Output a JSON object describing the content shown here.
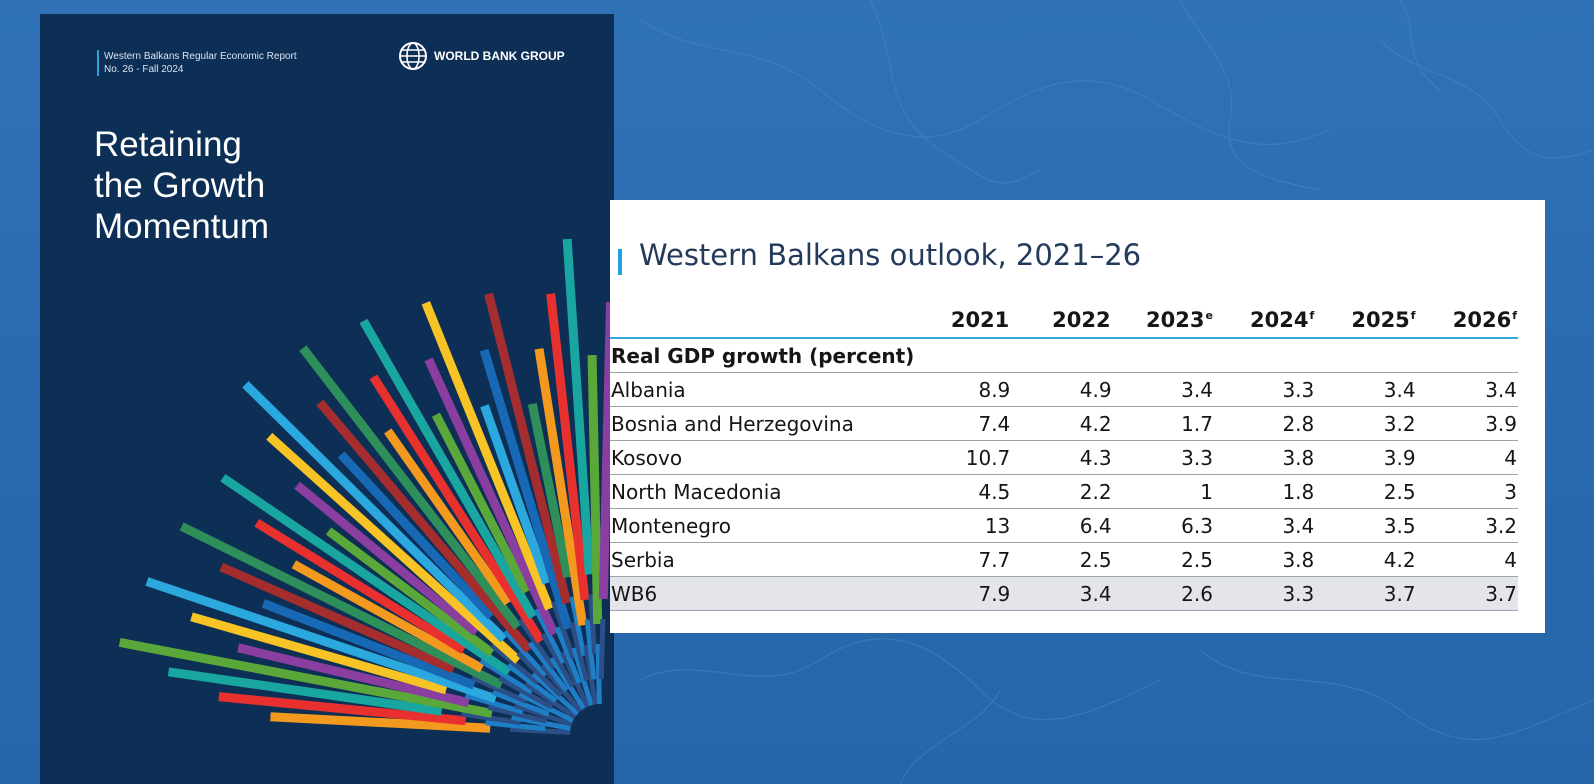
{
  "colors": {
    "background": "#2a6bb0",
    "cover_background": "#0e2f55",
    "accent": "#1fa2dc",
    "total_row": "#e3e5ea"
  },
  "cover": {
    "series": "Western Balkans Regular Economic Report",
    "issue": "No. 26 - Fall 2024",
    "brand_icon": "globe-icon",
    "brand": "WORLD BANK GROUP",
    "title_lines": [
      "Retaining",
      "the Growth",
      "Momentum"
    ]
  },
  "table": {
    "title": "Western Balkans outlook, 2021–26",
    "columns": [
      {
        "year": "2021",
        "note": ""
      },
      {
        "year": "2022",
        "note": ""
      },
      {
        "year": "2023",
        "note": "e"
      },
      {
        "year": "2024",
        "note": "f"
      },
      {
        "year": "2025",
        "note": "f"
      },
      {
        "year": "2026",
        "note": "f"
      }
    ],
    "section_label": "Real GDP growth (percent)",
    "rows": [
      {
        "country": "Albania",
        "values": [
          "8.9",
          "4.9",
          "3.4",
          "3.3",
          "3.4",
          "3.4"
        ]
      },
      {
        "country": "Bosnia and Herzegovina",
        "values": [
          "7.4",
          "4.2",
          "1.7",
          "2.8",
          "3.2",
          "3.9"
        ]
      },
      {
        "country": "Kosovo",
        "values": [
          "10.7",
          "4.3",
          "3.3",
          "3.8",
          "3.9",
          "4"
        ]
      },
      {
        "country": "North Macedonia",
        "values": [
          "4.5",
          "2.2",
          "1",
          "1.8",
          "2.5",
          "3"
        ]
      },
      {
        "country": "Montenegro",
        "values": [
          "13",
          "6.4",
          "6.3",
          "3.4",
          "3.5",
          "3.2"
        ]
      },
      {
        "country": "Serbia",
        "values": [
          "7.7",
          "2.5",
          "2.5",
          "3.8",
          "4.2",
          "4"
        ]
      },
      {
        "country": "WB6",
        "values": [
          "7.9",
          "3.4",
          "2.6",
          "3.3",
          "3.7",
          "3.7"
        ],
        "total": true
      }
    ]
  }
}
